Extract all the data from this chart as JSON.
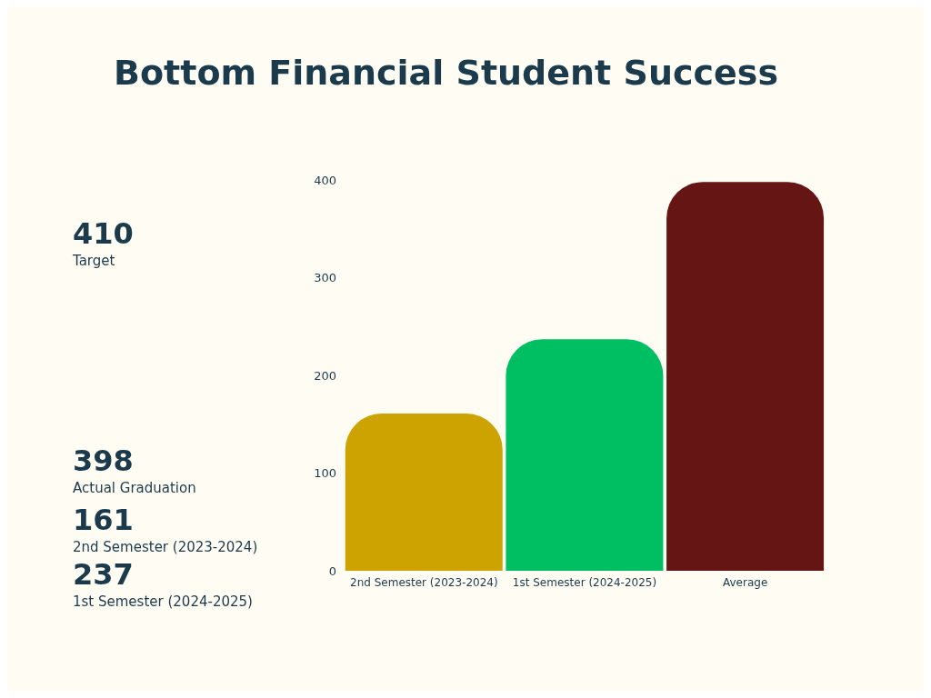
{
  "chart_data": {
    "type": "bar",
    "title": "Bottom Financial Student Success",
    "categories": [
      "2nd Semester (2023-2024)",
      "1st Semester (2024-2025)",
      "Average"
    ],
    "values": [
      161,
      237,
      398
    ],
    "colors": [
      "#cca300",
      "#00bf63",
      "#661515"
    ],
    "ylim": [
      0,
      400
    ],
    "yticks": [
      0,
      100,
      200,
      300,
      400
    ],
    "grid": false,
    "annotations": [
      "410",
      "Target",
      "398",
      "Actual Graduation",
      "161",
      "2nd Semester (2023-2024)",
      "237",
      "1st Semester (2024-2025)"
    ]
  }
}
